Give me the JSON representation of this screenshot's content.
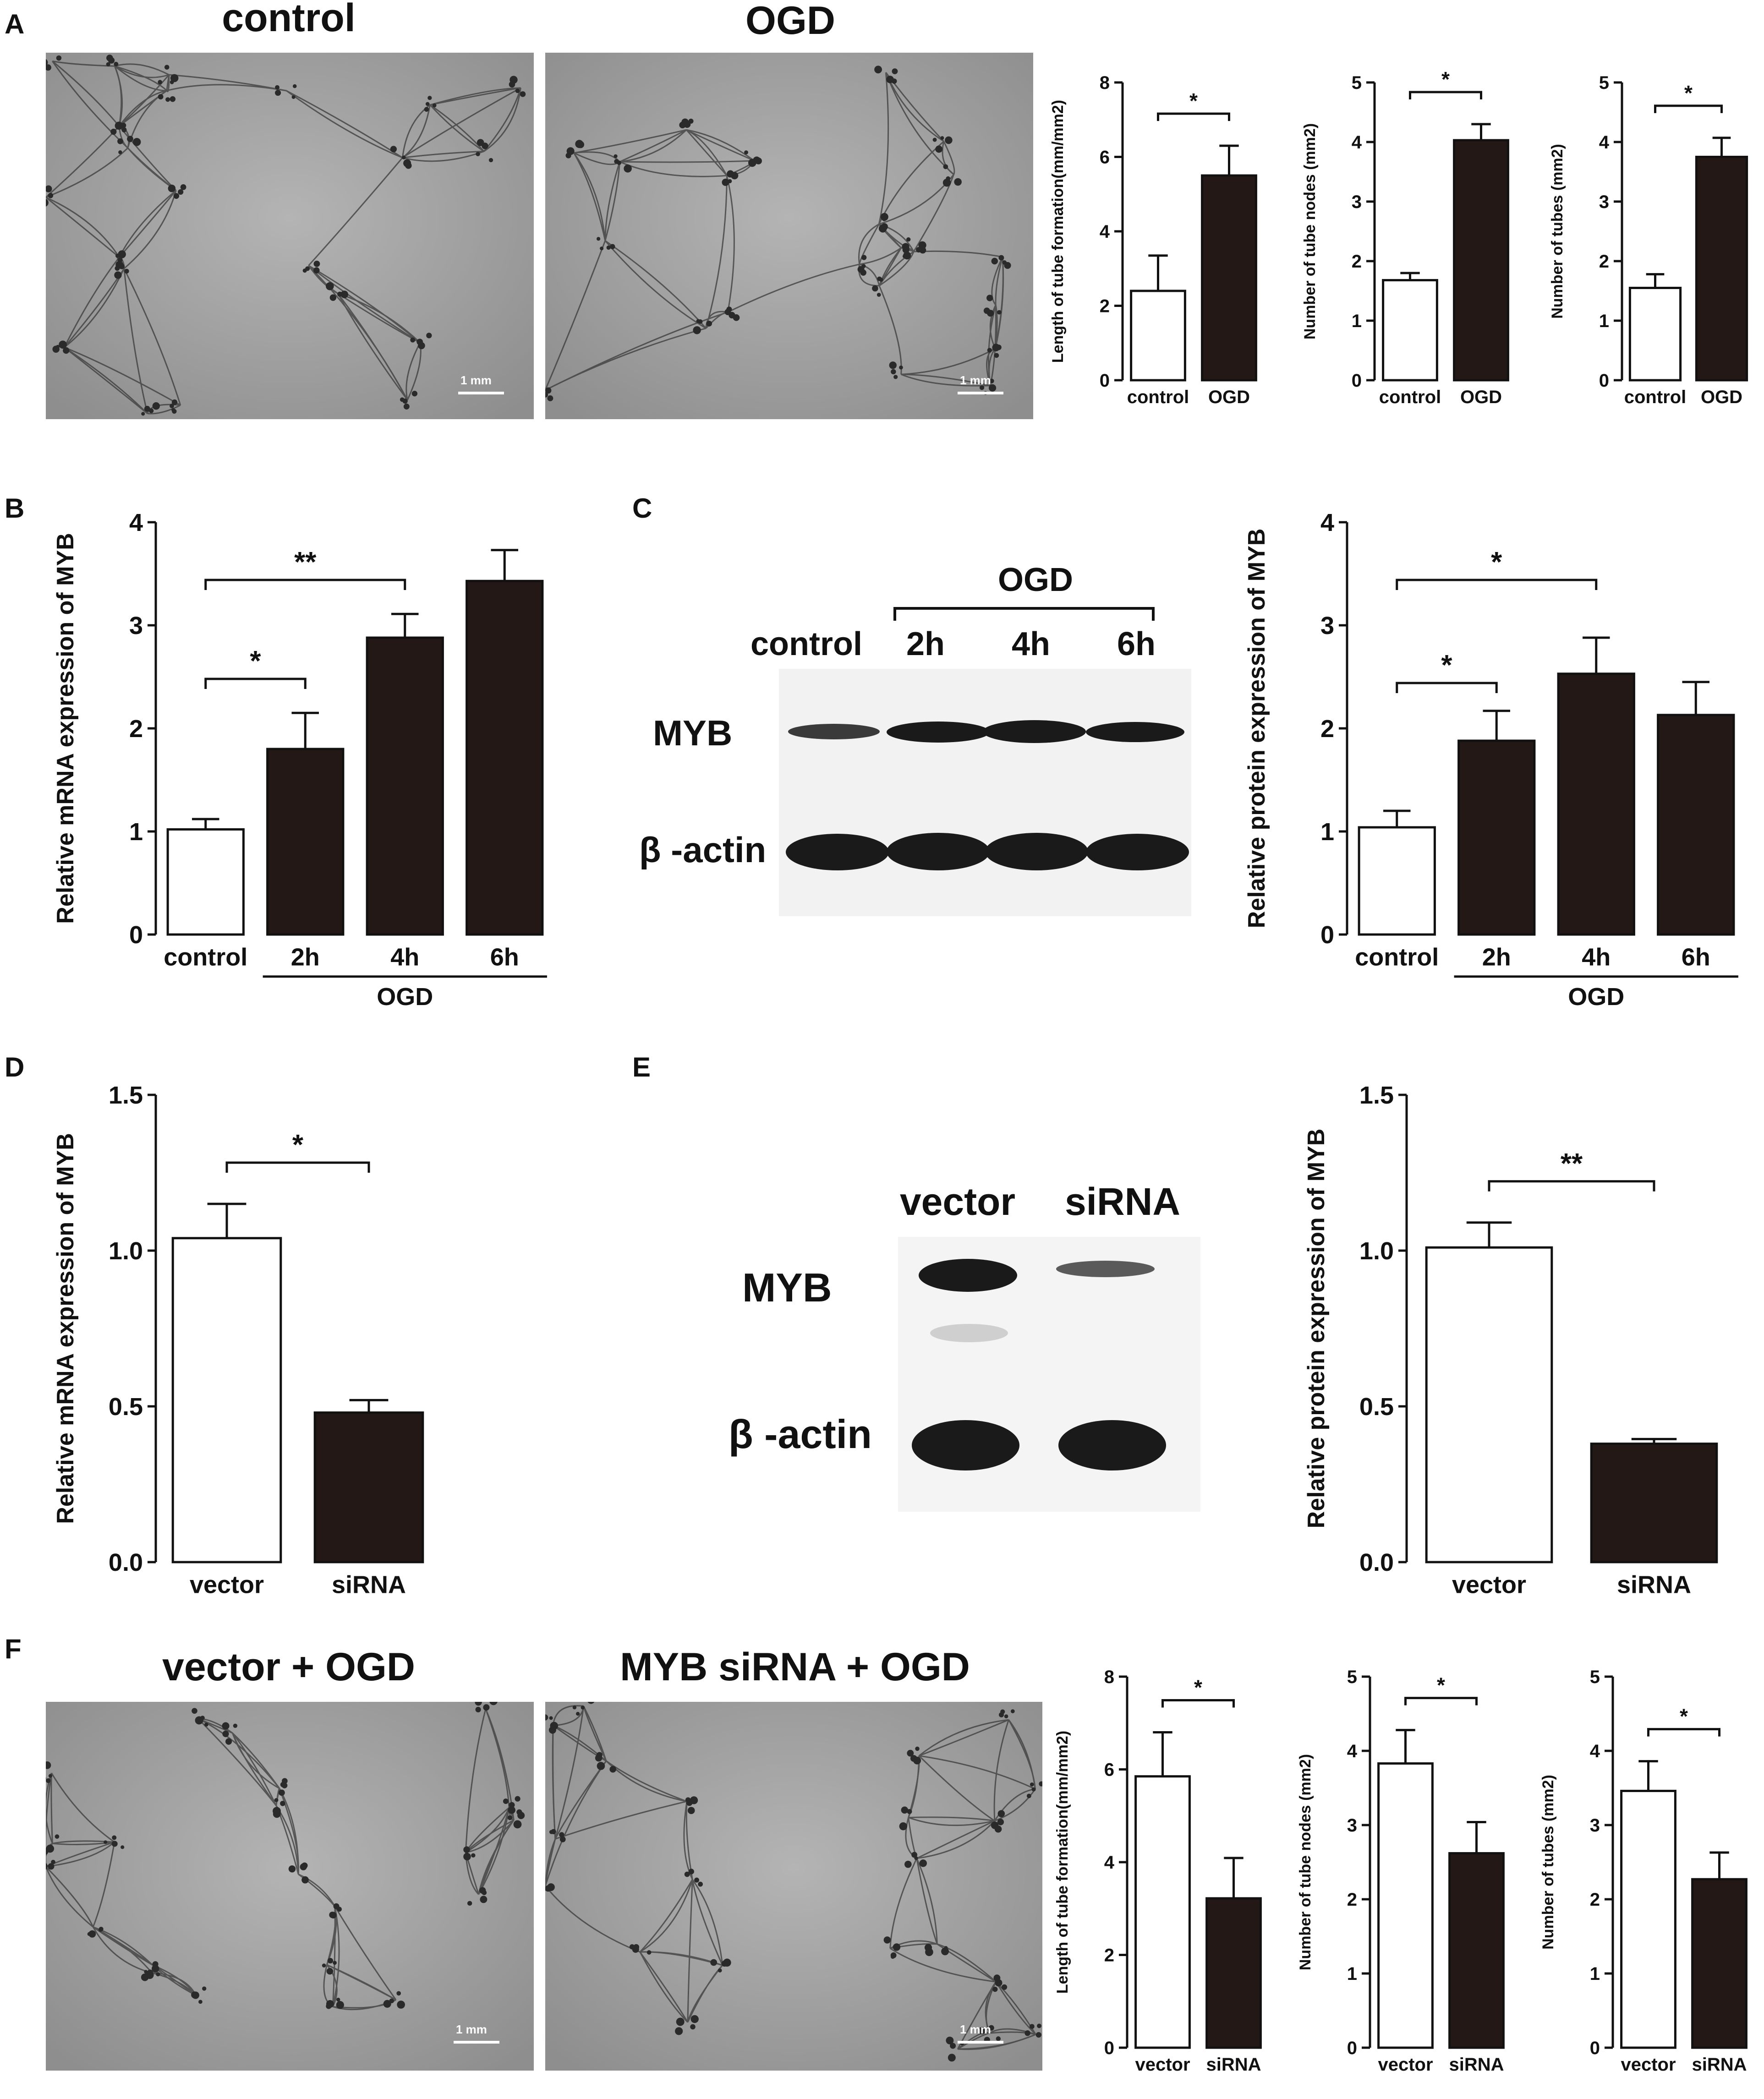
{
  "panels": {
    "A": "A",
    "B": "B",
    "C": "C",
    "D": "D",
    "E": "E",
    "F": "F"
  },
  "micrographs": {
    "control": "control",
    "ogd": "OGD",
    "vector_ogd": "vector + OGD",
    "myb_sirna_ogd": "MYB siRNA + OGD",
    "scale": "1 mm"
  },
  "blot_c": {
    "group": "OGD",
    "lanes": [
      "control",
      "2h",
      "4h",
      "6h"
    ],
    "rows": [
      "MYB",
      "β -actin"
    ]
  },
  "blot_e": {
    "lanes": [
      "vector",
      "siRNA"
    ],
    "rows": [
      "MYB",
      "β -actin"
    ]
  },
  "colors": {
    "filled": "#231815",
    "open": "#ffffff",
    "axis": "#111111"
  },
  "chart_data": [
    {
      "id": "A1",
      "type": "bar",
      "ylabel": "Length of tube formation(mm/mm2)",
      "categories": [
        "control",
        "OGD"
      ],
      "values": [
        2.4,
        5.5
      ],
      "errors": [
        0.95,
        0.8
      ],
      "fills": [
        "open",
        "filled"
      ],
      "ylim": [
        0,
        8
      ],
      "yticks": [
        "0",
        "2",
        "4",
        "6",
        "8"
      ],
      "sig": [
        {
          "from": 0,
          "to": 1,
          "label": "*"
        }
      ]
    },
    {
      "id": "A2",
      "type": "bar",
      "ylabel": "Number of tube nodes (mm2)",
      "categories": [
        "control",
        "OGD"
      ],
      "values": [
        1.68,
        4.03
      ],
      "errors": [
        0.12,
        0.27
      ],
      "fills": [
        "open",
        "filled"
      ],
      "ylim": [
        0,
        5
      ],
      "yticks": [
        "0",
        "1",
        "2",
        "3",
        "4",
        "5"
      ],
      "sig": [
        {
          "from": 0,
          "to": 1,
          "label": "*"
        }
      ]
    },
    {
      "id": "A3",
      "type": "bar",
      "ylabel": "Number of tubes (mm2)",
      "categories": [
        "control",
        "OGD"
      ],
      "values": [
        1.55,
        3.75
      ],
      "errors": [
        0.23,
        0.32
      ],
      "fills": [
        "open",
        "filled"
      ],
      "ylim": [
        0,
        5
      ],
      "yticks": [
        "0",
        "1",
        "2",
        "3",
        "4",
        "5"
      ],
      "sig": [
        {
          "from": 0,
          "to": 1,
          "label": "*"
        }
      ]
    },
    {
      "id": "B",
      "type": "bar",
      "ylabel": "Relative mRNA expression of MYB",
      "categories": [
        "control",
        "2h",
        "4h",
        "6h"
      ],
      "values": [
        1.02,
        1.8,
        2.88,
        3.43
      ],
      "errors": [
        0.1,
        0.35,
        0.23,
        0.3
      ],
      "fills": [
        "open",
        "filled",
        "filled",
        "filled"
      ],
      "ylim": [
        0,
        4
      ],
      "yticks": [
        "0",
        "1",
        "2",
        "3",
        "4"
      ],
      "group": {
        "label": "OGD",
        "from": 1,
        "to": 3
      },
      "sig": [
        {
          "from": 0,
          "to": 1,
          "label": "*"
        },
        {
          "from": 0,
          "to": 2,
          "label": "**"
        }
      ]
    },
    {
      "id": "C",
      "type": "bar",
      "ylabel": "Relative protein expression of MYB",
      "categories": [
        "control",
        "2h",
        "4h",
        "6h"
      ],
      "values": [
        1.04,
        1.88,
        2.53,
        2.13
      ],
      "errors": [
        0.16,
        0.29,
        0.35,
        0.32
      ],
      "fills": [
        "open",
        "filled",
        "filled",
        "filled"
      ],
      "ylim": [
        0,
        4
      ],
      "yticks": [
        "0",
        "1",
        "2",
        "3",
        "4"
      ],
      "group": {
        "label": "OGD",
        "from": 1,
        "to": 3
      },
      "sig": [
        {
          "from": 0,
          "to": 1,
          "label": "*"
        },
        {
          "from": 0,
          "to": 2,
          "label": "*"
        }
      ]
    },
    {
      "id": "D",
      "type": "bar",
      "ylabel": "Relative mRNA expression of MYB",
      "categories": [
        "vector",
        "siRNA"
      ],
      "values": [
        1.04,
        0.48
      ],
      "errors": [
        0.11,
        0.04
      ],
      "fills": [
        "open",
        "filled"
      ],
      "ylim": [
        0,
        1.5
      ],
      "yticks": [
        "0.0",
        "0.5",
        "1.0",
        "1.5"
      ],
      "sig": [
        {
          "from": 0,
          "to": 1,
          "label": "*"
        }
      ]
    },
    {
      "id": "E",
      "type": "bar",
      "ylabel": "Relative protein expression of MYB",
      "categories": [
        "vector",
        "siRNA"
      ],
      "values": [
        1.01,
        0.38
      ],
      "errors": [
        0.08,
        0.015
      ],
      "fills": [
        "open",
        "filled"
      ],
      "ylim": [
        0,
        1.5
      ],
      "yticks": [
        "0.0",
        "0.5",
        "1.0",
        "1.5"
      ],
      "sig": [
        {
          "from": 0,
          "to": 1,
          "label": "**"
        }
      ]
    },
    {
      "id": "F1",
      "type": "bar",
      "ylabel": "Length of tube formation(mm/mm2)",
      "categories": [
        "vector",
        "siRNA"
      ],
      "values": [
        5.85,
        3.22
      ],
      "errors": [
        0.95,
        0.87
      ],
      "fills": [
        "open",
        "filled"
      ],
      "ylim": [
        0,
        8
      ],
      "yticks": [
        "0",
        "2",
        "4",
        "6",
        "8"
      ],
      "sig": [
        {
          "from": 0,
          "to": 1,
          "label": "*"
        }
      ]
    },
    {
      "id": "F2",
      "type": "bar",
      "ylabel": "Number of tube nodes (mm2)",
      "categories": [
        "vector",
        "siRNA"
      ],
      "values": [
        3.83,
        2.62
      ],
      "errors": [
        0.45,
        0.42
      ],
      "fills": [
        "open",
        "filled"
      ],
      "ylim": [
        0,
        5
      ],
      "yticks": [
        "0",
        "1",
        "2",
        "3",
        "4",
        "5"
      ],
      "sig": [
        {
          "from": 0,
          "to": 1,
          "label": "*"
        }
      ]
    },
    {
      "id": "F3",
      "type": "bar",
      "ylabel": "Number of tubes (mm2)",
      "categories": [
        "vector",
        "siRNA"
      ],
      "values": [
        3.46,
        2.27
      ],
      "errors": [
        0.4,
        0.36
      ],
      "fills": [
        "open",
        "filled"
      ],
      "ylim": [
        0,
        5
      ],
      "yticks": [
        "0",
        "1",
        "2",
        "3",
        "4",
        "5"
      ],
      "sig": [
        {
          "from": 0,
          "to": 1,
          "label": "*"
        }
      ]
    }
  ]
}
